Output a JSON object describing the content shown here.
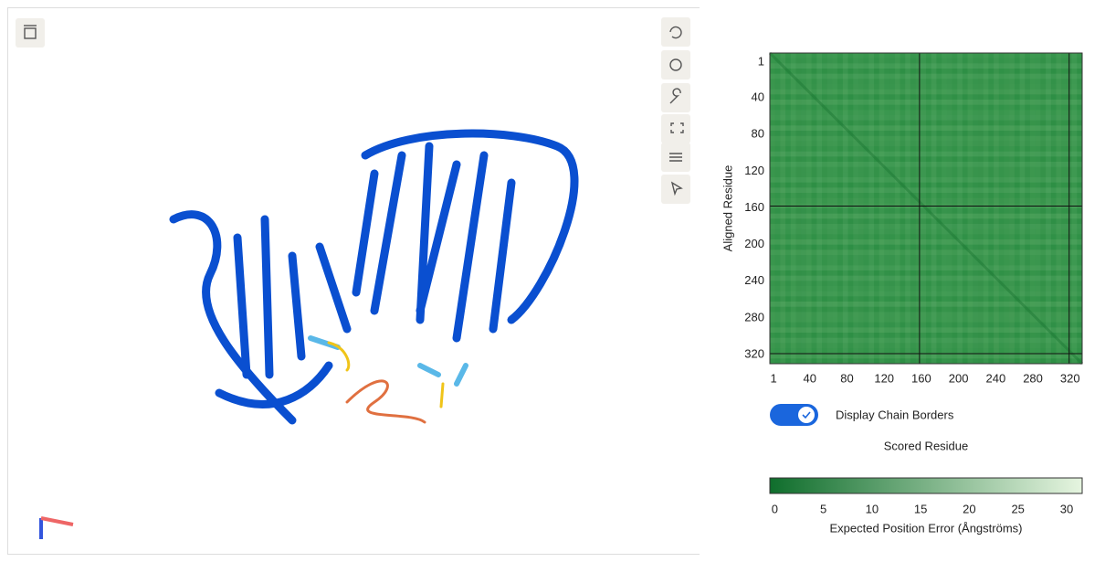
{
  "viewer_panel": {
    "display_chain_borders": "Display Chain Borders"
  },
  "chart_data": {
    "type": "heatmap",
    "x_label": "Scored Residue",
    "y_label": "Aligned Residue",
    "xlim": [
      -3,
      333
    ],
    "ylim": [
      -9,
      330
    ],
    "xticks": [
      1,
      40,
      80,
      120,
      160,
      200,
      240,
      280,
      320
    ],
    "yticks": [
      1,
      40,
      80,
      120,
      160,
      200,
      240,
      280,
      320
    ],
    "chain_borders": [
      158,
      319
    ],
    "colorbar": {
      "title": "Expected Position Error (Ångströms)",
      "clim": [
        -0.5,
        31.6
      ],
      "ticks": [
        0,
        5,
        10,
        15,
        20,
        25,
        30
      ],
      "colors": [
        "#0f6e2c",
        "#e6f5e0"
      ]
    }
  }
}
